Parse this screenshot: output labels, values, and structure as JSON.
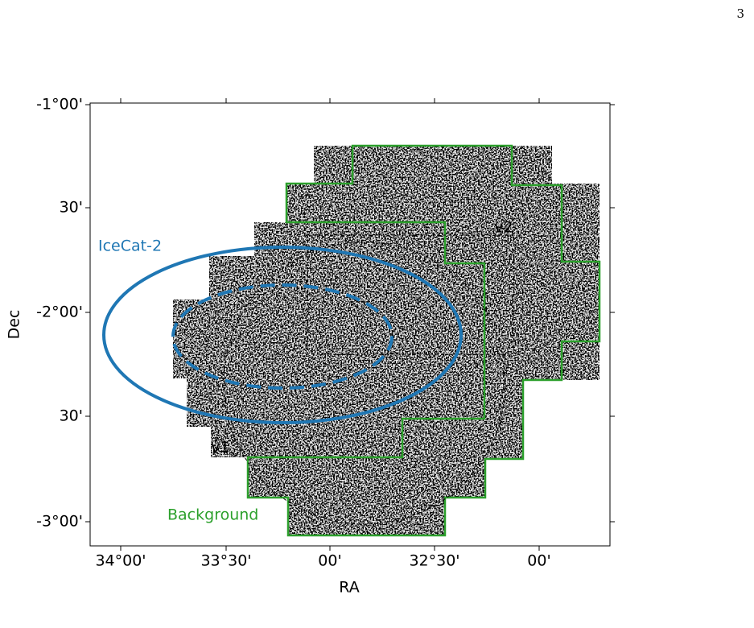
{
  "page_number": "3",
  "figure": {
    "xlabel": "RA",
    "ylabel": "Dec",
    "xtick_labels": [
      "34°00'",
      "33°30'",
      "00'",
      "32°30'",
      "00'"
    ],
    "ytick_labels": [
      "-1°00'",
      "30'",
      "-2°00'",
      "30'",
      "-3°00'"
    ],
    "annotations": {
      "icecat": "IceCat-2",
      "background": "Background",
      "v1": "v1",
      "v2": "v2"
    }
  }
}
